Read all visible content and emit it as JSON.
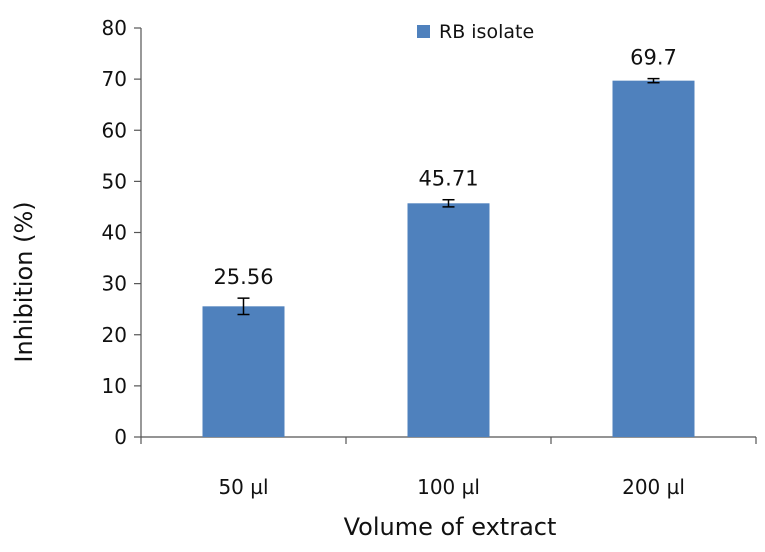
{
  "chart_data": {
    "type": "bar",
    "title": "",
    "xlabel": "Volume of extract",
    "ylabel": "Inhibition (%)",
    "categories": [
      "50 µl",
      "100 µl",
      "200 µl"
    ],
    "series": [
      {
        "name": "RB isolate",
        "values": [
          25.56,
          45.71,
          69.7
        ],
        "errors": [
          1.6,
          0.7,
          0.4
        ],
        "data_labels": [
          "25.56",
          "45.71",
          "69.7"
        ],
        "color": "#4F81BD"
      }
    ],
    "ylim": [
      0,
      80
    ],
    "yticks": [
      0,
      10,
      20,
      30,
      40,
      50,
      60,
      70,
      80
    ],
    "grid": false,
    "legend": "top-right"
  }
}
